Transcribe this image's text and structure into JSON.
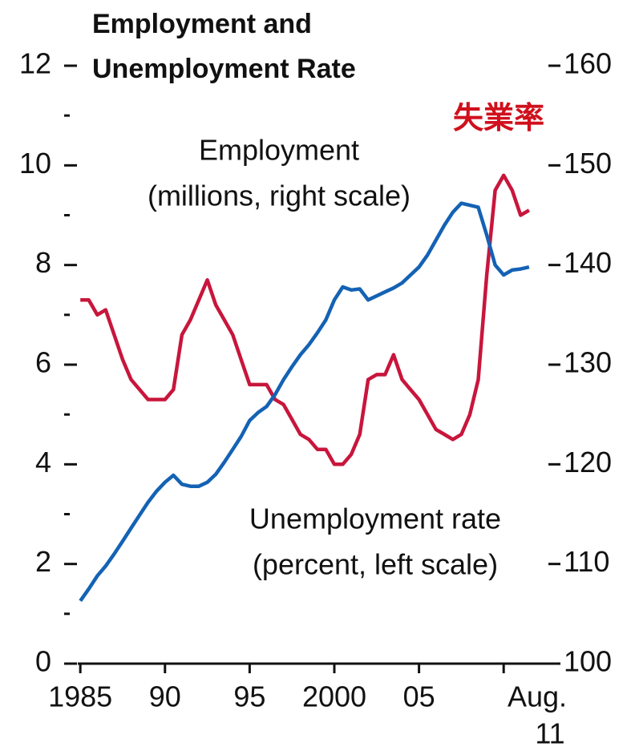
{
  "chart_data": {
    "type": "line",
    "title": [
      "Employment and",
      "Unemployment Rate"
    ],
    "annotation": "失業率",
    "x": [
      1985.0,
      1985.5,
      1986.0,
      1986.5,
      1987.0,
      1987.5,
      1988.0,
      1988.5,
      1989.0,
      1989.5,
      1990.0,
      1990.5,
      1991.0,
      1991.5,
      1992.0,
      1992.5,
      1993.0,
      1993.5,
      1994.0,
      1994.5,
      1995.0,
      1995.5,
      1996.0,
      1996.5,
      1997.0,
      1997.5,
      1998.0,
      1998.5,
      1999.0,
      1999.5,
      2000.0,
      2000.5,
      2001.0,
      2001.5,
      2002.0,
      2002.5,
      2003.0,
      2003.5,
      2004.0,
      2004.5,
      2005.0,
      2005.5,
      2006.0,
      2006.5,
      2007.0,
      2007.5,
      2008.0,
      2008.5,
      2009.0,
      2009.5,
      2010.0,
      2010.5,
      2011.0,
      2011.5
    ],
    "series": [
      {
        "name": "Unemployment rate",
        "note": "(percent, left scale)",
        "color": "#c8163c",
        "axis": "y",
        "values": [
          7.3,
          7.3,
          7.0,
          7.1,
          6.6,
          6.1,
          5.7,
          5.5,
          5.3,
          5.3,
          5.3,
          5.5,
          6.6,
          6.9,
          7.3,
          7.7,
          7.2,
          6.9,
          6.6,
          6.1,
          5.6,
          5.6,
          5.6,
          5.3,
          5.2,
          4.9,
          4.6,
          4.5,
          4.3,
          4.3,
          4.0,
          4.0,
          4.2,
          4.6,
          5.7,
          5.8,
          5.8,
          6.2,
          5.7,
          5.5,
          5.3,
          5.0,
          4.7,
          4.6,
          4.5,
          4.6,
          5.0,
          5.7,
          7.8,
          9.5,
          9.8,
          9.5,
          9.0,
          9.1
        ]
      },
      {
        "name": "Employment",
        "note": "(millions, right scale)",
        "color": "#1462b4",
        "axis": "y2",
        "values": [
          106.3,
          107.5,
          108.8,
          109.8,
          111.0,
          112.3,
          113.6,
          114.9,
          116.2,
          117.3,
          118.2,
          118.9,
          118.0,
          117.8,
          117.8,
          118.2,
          119.0,
          120.2,
          121.5,
          122.8,
          124.4,
          125.2,
          125.8,
          127.0,
          128.5,
          129.8,
          131.0,
          132.0,
          133.2,
          134.5,
          136.5,
          137.8,
          137.5,
          137.6,
          136.5,
          136.9,
          137.3,
          137.7,
          138.2,
          139.0,
          139.8,
          141.0,
          142.5,
          144.0,
          145.3,
          146.2,
          146.0,
          145.8,
          143.0,
          140.0,
          139.0,
          139.5,
          139.6,
          139.8
        ]
      }
    ],
    "xlim": [
      1984.85,
      2012.5
    ],
    "xticks": [
      {
        "value": 1985,
        "label": "1985"
      },
      {
        "value": 1990,
        "label": "90"
      },
      {
        "value": 1995,
        "label": "95"
      },
      {
        "value": 2000,
        "label": "2000"
      },
      {
        "value": 2005,
        "label": "05"
      },
      {
        "value": 2010
      }
    ],
    "x_end_label": [
      "Aug.",
      "11"
    ],
    "ylim": [
      0,
      12
    ],
    "yticks": [
      0,
      2,
      4,
      6,
      8,
      10,
      12
    ],
    "yticks_minor": [
      1,
      3,
      5,
      7,
      9,
      11
    ],
    "y2lim": [
      100,
      160
    ],
    "y2ticks": [
      100,
      110,
      120,
      130,
      140,
      150,
      160
    ]
  }
}
